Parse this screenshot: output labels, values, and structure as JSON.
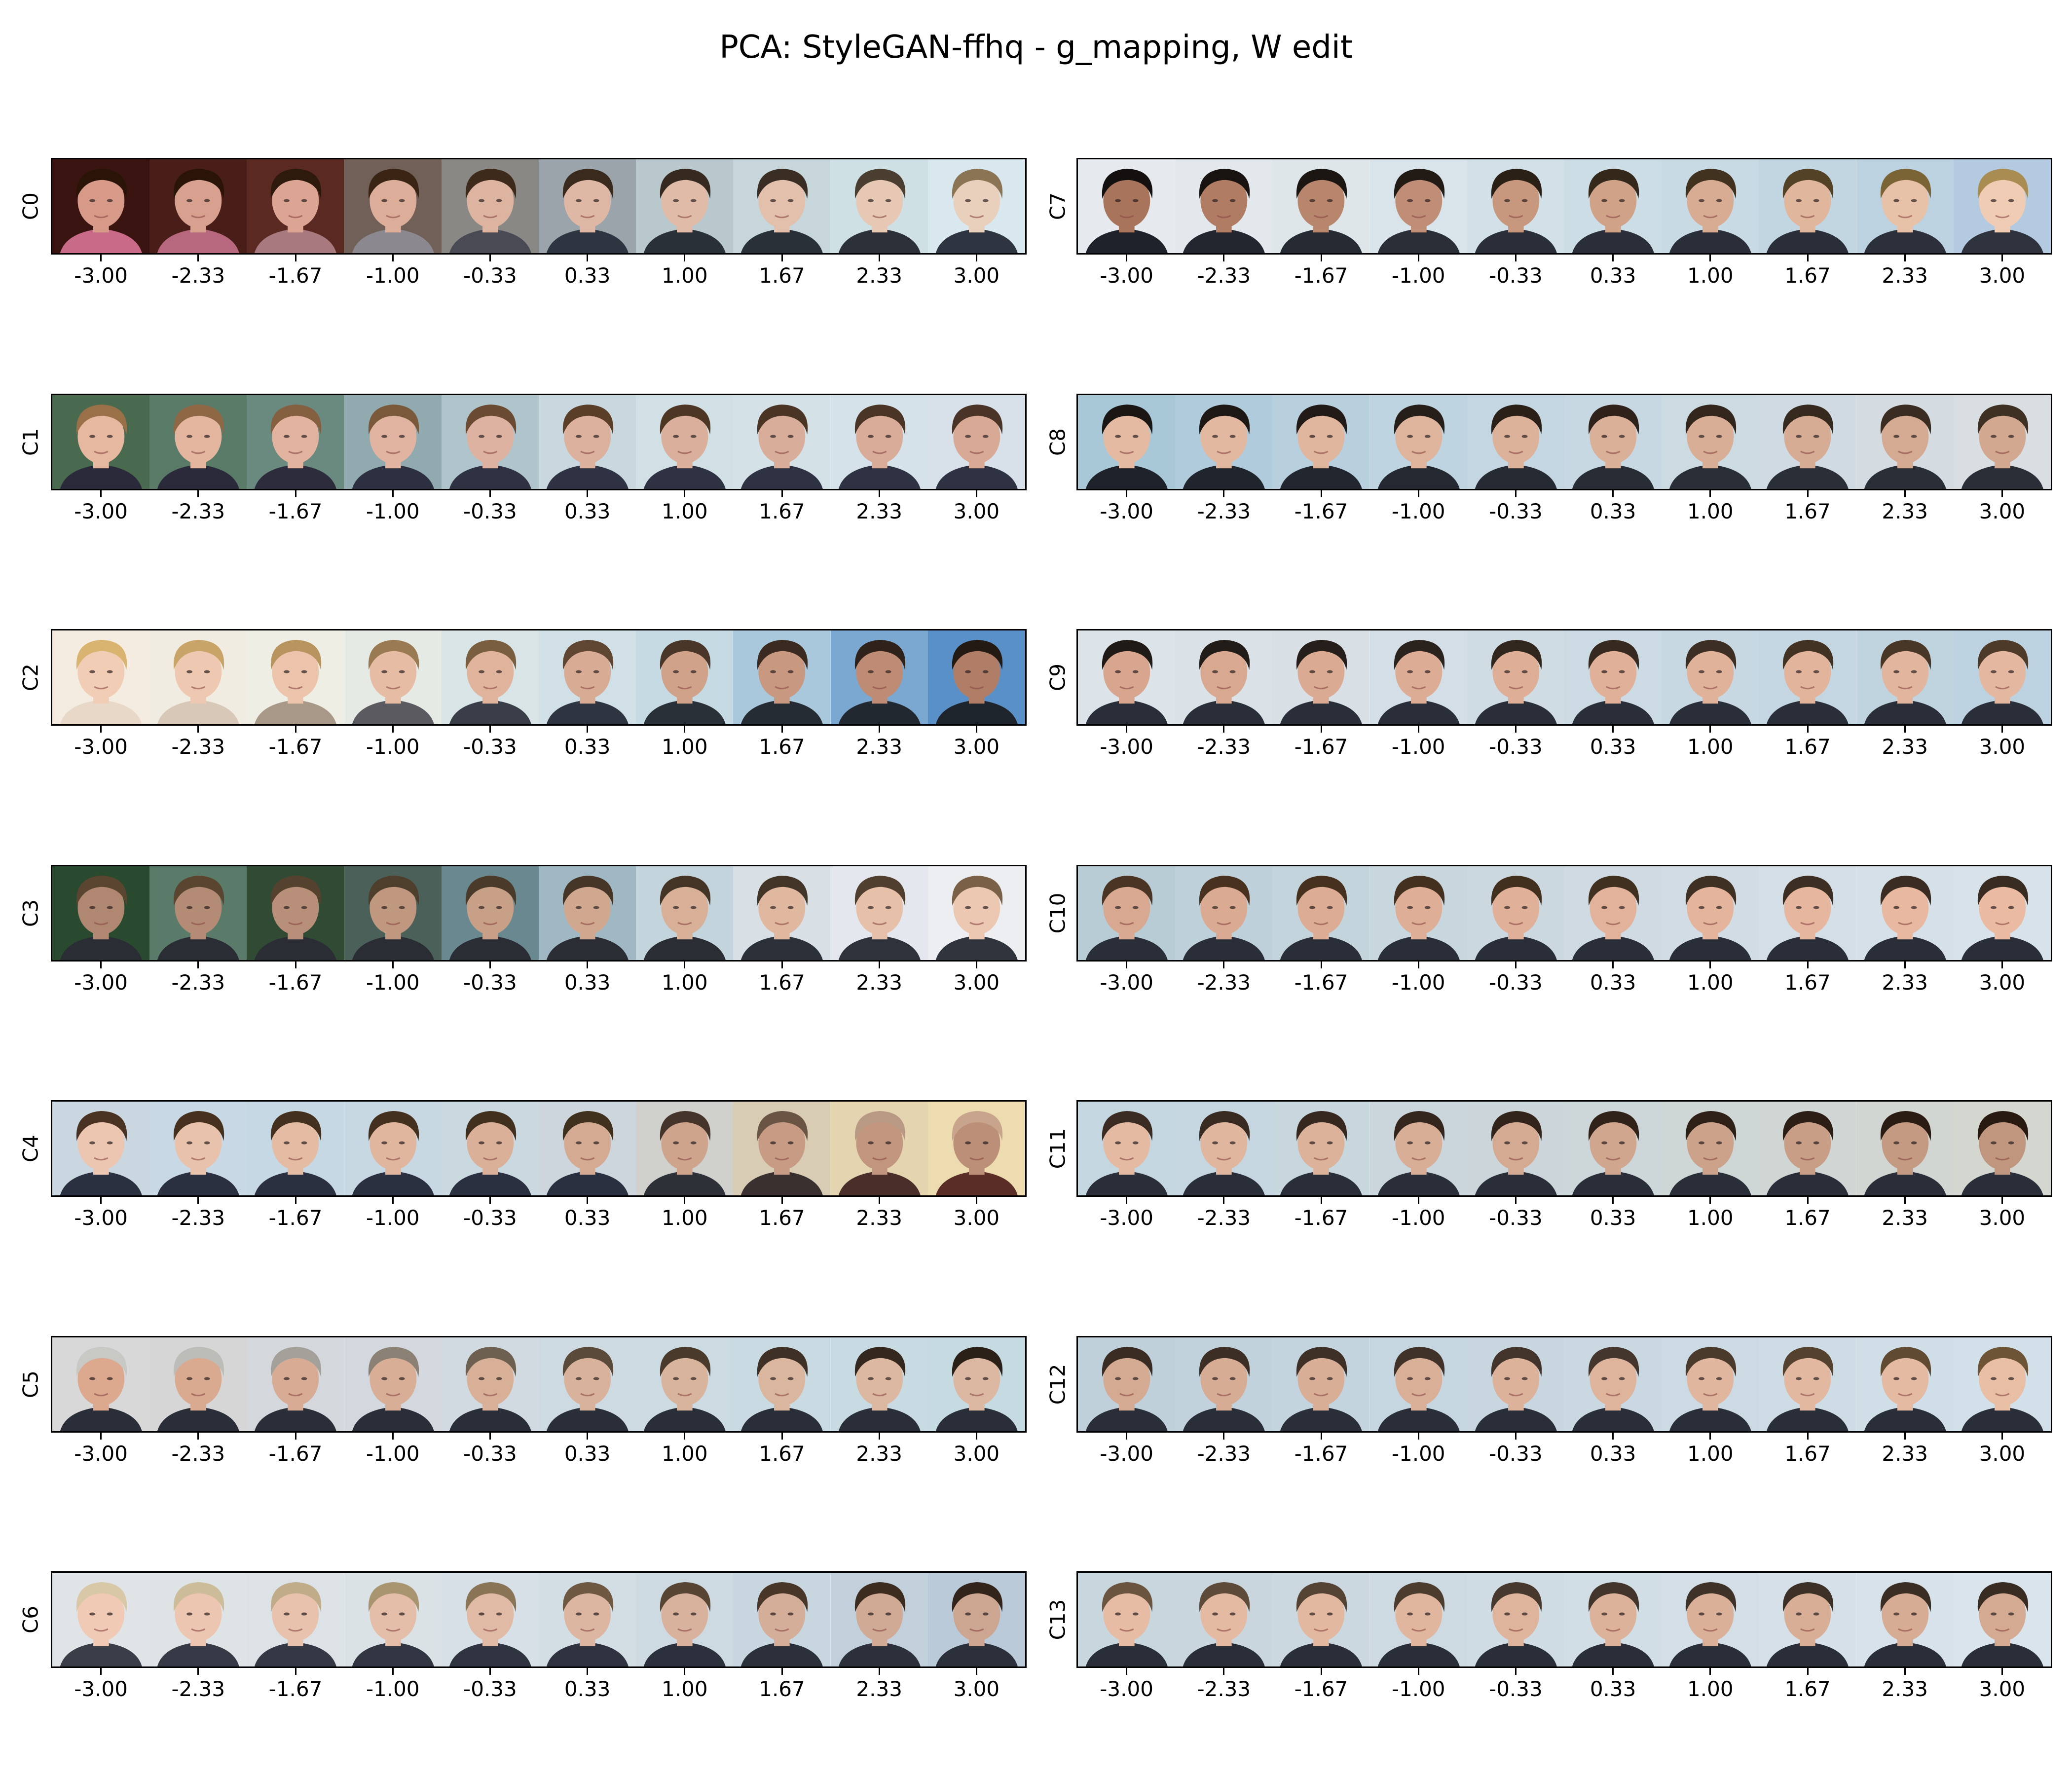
{
  "title": "PCA: StyleGAN-ffhq - g_mapping, W edit",
  "ticks": [
    "-3.00",
    "-2.33",
    "-1.67",
    "-1.00",
    "-0.33",
    "0.33",
    "1.00",
    "1.67",
    "2.33",
    "3.00"
  ],
  "tick_values": [
    -3.0,
    -2.33,
    -1.67,
    -1.0,
    -0.33,
    0.33,
    1.0,
    1.67,
    2.33,
    3.0
  ],
  "components": [
    {
      "label": "C0",
      "bg": [
        "#3a1410",
        "#4a1e18",
        "#5a2a22",
        "#706058",
        "#8a8884",
        "#9aa4aa",
        "#b8c8cc",
        "#c6d6da",
        "#cfe0e4",
        "#d8e8ee"
      ],
      "hair": [
        "#2a1408",
        "#2a1408",
        "#2e1a0c",
        "#3a2414",
        "#3e2a1a",
        "#3a2a1e",
        "#362a20",
        "#3a2e24",
        "#4a3e30",
        "#8a7454"
      ],
      "skin": [
        "#d89a88",
        "#d8a08e",
        "#dca492",
        "#dcae9a",
        "#dcb4a0",
        "#deb8a4",
        "#e0bca8",
        "#e2c0ac",
        "#e6c8b4",
        "#e8d0bc"
      ],
      "cloth": [
        "#c86a88",
        "#b8687e",
        "#a87a80",
        "#8c8890",
        "#4a4a55",
        "#2e3440",
        "#2a3038",
        "#2a3038",
        "#2c3038",
        "#2e3440"
      ]
    },
    {
      "label": "C1",
      "bg": [
        "#4a6a50",
        "#5a7a68",
        "#6a8a80",
        "#90aab0",
        "#b0c4cc",
        "#c8d8de",
        "#d0e0e4",
        "#d4e2e8",
        "#d6e2ea",
        "#d8e0ea"
      ],
      "hair": [
        "#9a7048",
        "#8e6844",
        "#846040",
        "#7a583a",
        "#6a4a30",
        "#5a3e28",
        "#4e3624",
        "#4a3424",
        "#4a3426",
        "#4a3428"
      ],
      "skin": [
        "#e6b8a0",
        "#e4b6a0",
        "#e2b4a0",
        "#e0b4a0",
        "#deb2a0",
        "#dcb29e",
        "#dab09c",
        "#d8ae9a",
        "#d8ac98",
        "#d8aa96"
      ],
      "cloth": [
        "#2a2a3a",
        "#2a2a3a",
        "#2c2c3c",
        "#2c3040",
        "#2e3242",
        "#2e3242",
        "#2e3242",
        "#2e3242",
        "#2e3242",
        "#2e3242"
      ]
    },
    {
      "label": "C2",
      "bg": [
        "#f4ece0",
        "#f0ece2",
        "#eeeee4",
        "#e6eae4",
        "#d8e4e6",
        "#d0e0e6",
        "#c6dae4",
        "#aac8dc",
        "#7aa8d0",
        "#5a90c8"
      ],
      "hair": [
        "#d8b470",
        "#c8a468",
        "#b8945e",
        "#9a7a52",
        "#7a5e40",
        "#5e4632",
        "#4a3628",
        "#3a2a20",
        "#2e221a",
        "#241a14"
      ],
      "skin": [
        "#f2cdb6",
        "#eec8b0",
        "#ecc4ac",
        "#e6bca4",
        "#e0b49c",
        "#d8ac94",
        "#d0a28a",
        "#c89880",
        "#be8c74",
        "#b07e66"
      ],
      "cloth": [
        "#e8d8c8",
        "#d8c8b8",
        "#a89888",
        "#5a5a60",
        "#3a3e48",
        "#2e3440",
        "#2a3038",
        "#262c34",
        "#222830",
        "#1e242c"
      ]
    },
    {
      "label": "C3",
      "bg": [
        "#2a4a30",
        "#5a7a6a",
        "#304a34",
        "#4a6058",
        "#6a8890",
        "#a0b8c4",
        "#c4d4dc",
        "#d8e0e6",
        "#e4e8ee",
        "#eceef2"
      ],
      "hair": [
        "#5a4630",
        "#5a4630",
        "#54422e",
        "#4e3e2c",
        "#4a3a2a",
        "#463628",
        "#443426",
        "#423426",
        "#503e2e",
        "#7a6046"
      ],
      "skin": [
        "#b08872",
        "#b48c76",
        "#b8907a",
        "#c09880",
        "#c8a088",
        "#d0a890",
        "#d8b098",
        "#e0b8a0",
        "#e6c0a8",
        "#ecc8b2"
      ],
      "cloth": [
        "#2a2e34",
        "#2a2e34",
        "#2a2e34",
        "#2a2e34",
        "#2a2e34",
        "#2a2e34",
        "#2a2e34",
        "#2c3038",
        "#2e323a",
        "#30343c"
      ]
    },
    {
      "label": "C4",
      "bg": [
        "#cad6e0",
        "#c8d8e4",
        "#c6d8e4",
        "#c8d8e2",
        "#cad8e0",
        "#ccd6dc",
        "#d0d0cc",
        "#d8ccb4",
        "#e4d4b0",
        "#ecdcb0"
      ],
      "hair": [
        "#4a3222",
        "#46301e",
        "#44301e",
        "#44301e",
        "#42301e",
        "#40301e",
        "#44342a",
        "#6a5444",
        "#b89a84",
        "#c8a48c"
      ],
      "skin": [
        "#ecc6b0",
        "#e8c2aa",
        "#e4bca4",
        "#e0b69e",
        "#dab098",
        "#d4aa92",
        "#ceA48c",
        "#c89c84",
        "#c2967e",
        "#bc9078"
      ],
      "cloth": [
        "#2a3040",
        "#2a3040",
        "#2a3040",
        "#2a3040",
        "#2a3040",
        "#2a3040",
        "#2e3038",
        "#3a3030",
        "#4a2e2a",
        "#5a2e26"
      ]
    },
    {
      "label": "C5",
      "bg": [
        "#d8d8d8",
        "#d6d6d6",
        "#d4d8dc",
        "#d2d8de",
        "#d0dae0",
        "#cedae2",
        "#ccdae2",
        "#cadae2",
        "#c8dae2",
        "#c6dae2"
      ],
      "hair": [
        "#c8c8c4",
        "#bcbcb8",
        "#a4a09a",
        "#8a8074",
        "#6e6050",
        "#5a4a3a",
        "#4a3a2c",
        "#3e3024",
        "#34281e",
        "#2a2018"
      ],
      "skin": [
        "#dca88e",
        "#daaa90",
        "#d8ac94",
        "#d8ae96",
        "#d8b098",
        "#d8b29a",
        "#d8b49c",
        "#dab69e",
        "#dcb8a0",
        "#dcb8a2"
      ],
      "cloth": [
        "#2a2e38",
        "#2a2e38",
        "#2a2e38",
        "#2a2e38",
        "#2a2e38",
        "#2a2e38",
        "#2a2e38",
        "#2a2e38",
        "#2a2e38",
        "#2a2e38"
      ]
    },
    {
      "label": "C6",
      "bg": [
        "#e0e4e6",
        "#dee4e6",
        "#dce2e6",
        "#dae2e6",
        "#d6e0e6",
        "#d2dee4",
        "#cedae2",
        "#c8d6e0",
        "#c2d0dc",
        "#bacad8"
      ],
      "hair": [
        "#d8c8a8",
        "#ccbc9a",
        "#c0ac88",
        "#a8946e",
        "#8a7456",
        "#6e5842",
        "#584432",
        "#483628",
        "#3c2c20",
        "#32241a"
      ],
      "skin": [
        "#f0cab4",
        "#ecc6b0",
        "#e8c2ac",
        "#e4bea8",
        "#e0baa4",
        "#dcb6a0",
        "#d8b29c",
        "#d4ae98",
        "#d0aa94",
        "#cca690"
      ],
      "cloth": [
        "#3a3e48",
        "#363a46",
        "#343844",
        "#323642",
        "#303440",
        "#2e323e",
        "#2c303c",
        "#2c303a",
        "#2c303a",
        "#2c303a"
      ]
    }
  ],
  "components_right": [
    {
      "label": "C7",
      "bg": [
        "#e6eaee",
        "#e2e8ec",
        "#dee6ea",
        "#d8e4ea",
        "#d2e0e8",
        "#cddde6",
        "#c8dae4",
        "#c2d6e2",
        "#bcd2e0",
        "#b4cae0"
      ],
      "hair": [
        "#141010",
        "#181210",
        "#1c1612",
        "#221a14",
        "#2a2016",
        "#34281a",
        "#40321e",
        "#544226",
        "#7a6436",
        "#a88c52"
      ],
      "skin": [
        "#a8745c",
        "#b07c64",
        "#b8866c",
        "#c08e76",
        "#c8987e",
        "#d0a288",
        "#d8ac92",
        "#e0b69c",
        "#e8c2a8",
        "#f0ccb4"
      ],
      "cloth": [
        "#1e222a",
        "#22262e",
        "#262a32",
        "#2a2e36",
        "#2a2e38",
        "#2a2e38",
        "#2a2e38",
        "#2a2e38",
        "#2c303a",
        "#2e323c"
      ]
    },
    {
      "label": "C8",
      "bg": [
        "#a8c8d8",
        "#b0ccdc",
        "#b8d0de",
        "#bed4e0",
        "#c4d6e2",
        "#c8d8e2",
        "#ccdae2",
        "#d0dae2",
        "#d4dce2",
        "#d8dee2"
      ],
      "hair": [
        "#1a1614",
        "#1e1814",
        "#221a16",
        "#261e18",
        "#2a2018",
        "#2e221a",
        "#32261c",
        "#362a1e",
        "#3a2c20",
        "#3e3022"
      ],
      "skin": [
        "#e4baa2",
        "#e2b8a0",
        "#e0b69e",
        "#deb49c",
        "#dcb29a",
        "#dab098",
        "#d8ae96",
        "#d6ac94",
        "#d4aa92",
        "#d2a890"
      ],
      "cloth": [
        "#1e222a",
        "#20242c",
        "#22262e",
        "#242830",
        "#262a32",
        "#282c34",
        "#2a2e36",
        "#2a2e36",
        "#2a2e36",
        "#2a2e36"
      ]
    },
    {
      "label": "C9",
      "bg": [
        "#dce4ea",
        "#dae2e8",
        "#d8e0e6",
        "#d4dee6",
        "#d0dce4",
        "#ccdae4",
        "#c8d8e2",
        "#c4d6e2",
        "#c0d4e0",
        "#bcd2e0"
      ],
      "hair": [
        "#201a16",
        "#221c18",
        "#261e1a",
        "#2a221c",
        "#30261e",
        "#362a20",
        "#3c2e22",
        "#423224",
        "#483626",
        "#4e3a28"
      ],
      "skin": [
        "#d8a68e",
        "#d8a890",
        "#daaa92",
        "#dcac94",
        "#deae96",
        "#e0b098",
        "#e0b29a",
        "#e2b49c",
        "#e2b69e",
        "#e4b8a0"
      ],
      "cloth": [
        "#2a2e38",
        "#2a2e38",
        "#2a2e38",
        "#2a2e38",
        "#2a2e38",
        "#2a2e38",
        "#2a2e38",
        "#2a2e38",
        "#2a2e38",
        "#2a2e38"
      ]
    },
    {
      "label": "C10",
      "bg": [
        "#b8ccd6",
        "#bed0da",
        "#c4d4dc",
        "#c8d6de",
        "#ccd8e0",
        "#d0dae2",
        "#d2dce4",
        "#d4dee6",
        "#d6e0e8",
        "#d8e2ea"
      ],
      "hair": [
        "#4a3424",
        "#48321f",
        "#46311f",
        "#44301f",
        "#42301f",
        "#403020",
        "#3e3022",
        "#3c2e22",
        "#3a2c22",
        "#382c22"
      ],
      "skin": [
        "#d8a890",
        "#daaa92",
        "#dcac94",
        "#deae96",
        "#e0b098",
        "#e2b29a",
        "#e4b49c",
        "#e6b69e",
        "#e8b8a0",
        "#eabaa2"
      ],
      "cloth": [
        "#2a2e38",
        "#2a2e38",
        "#2a2e38",
        "#2a2e38",
        "#2a2e38",
        "#2a2e38",
        "#2a2e38",
        "#2a2e38",
        "#2a2e38",
        "#2a2e38"
      ]
    },
    {
      "label": "C11",
      "bg": [
        "#c4d6e0",
        "#c6d6e0",
        "#c8d6de",
        "#cad6dc",
        "#ccd6da",
        "#cdd6d8",
        "#ced6d6",
        "#d0d6d4",
        "#d2d6d2",
        "#d4d6d0"
      ],
      "hair": [
        "#3a2c22",
        "#382a20",
        "#36281e",
        "#34261c",
        "#32241a",
        "#302218",
        "#2e2016",
        "#2c1e14",
        "#2a1c12",
        "#281a10"
      ],
      "skin": [
        "#e4baa2",
        "#e0b69e",
        "#dcb29a",
        "#d8ae96",
        "#d4aa92",
        "#d0a68e",
        "#cca28a",
        "#c89e86",
        "#c49a82",
        "#c0967e"
      ],
      "cloth": [
        "#2a2e38",
        "#2a2e38",
        "#2a2e38",
        "#2a2e38",
        "#2a2e38",
        "#2a2e38",
        "#2a2e38",
        "#2a2e38",
        "#2a2e38",
        "#2a2e38"
      ]
    },
    {
      "label": "C12",
      "bg": [
        "#c0d0da",
        "#c2d2dc",
        "#c4d4de",
        "#c6d6e0",
        "#c8d6e0",
        "#cad8e2",
        "#ccdae4",
        "#cedce6",
        "#d0dee8",
        "#d2e0ea"
      ],
      "hair": [
        "#3a2c22",
        "#3c2e24",
        "#3e3026",
        "#403228",
        "#42342a",
        "#44362c",
        "#4a3a2c",
        "#54422e",
        "#604a32",
        "#6e5436"
      ],
      "skin": [
        "#d4aa92",
        "#d6ac94",
        "#d8ae96",
        "#daaf98",
        "#dcb29a",
        "#deb49c",
        "#e0b69e",
        "#e2b8a0",
        "#e4baa2",
        "#e8bea4"
      ],
      "cloth": [
        "#2a2e38",
        "#2a2e38",
        "#2a2e38",
        "#2a2e38",
        "#2a2e38",
        "#2a2e38",
        "#2a2e38",
        "#2a2e38",
        "#2a2e38",
        "#2a2e38"
      ]
    },
    {
      "label": "C13",
      "bg": [
        "#c8d6de",
        "#cad6de",
        "#ccd8e0",
        "#cedae2",
        "#d0dce4",
        "#d2dee6",
        "#d4dee6",
        "#d6e0e8",
        "#d8e2ea",
        "#dae4ec"
      ],
      "hair": [
        "#6a5440",
        "#5e4a38",
        "#544232",
        "#4c3c2e",
        "#46382c",
        "#42342a",
        "#3e3228",
        "#3c3026",
        "#3a2e24",
        "#382c22"
      ],
      "skin": [
        "#e6bca4",
        "#e4baa2",
        "#e2b8a0",
        "#e0b69e",
        "#deb49c",
        "#dcb29a",
        "#dab098",
        "#d8ae96",
        "#d6ac94",
        "#d4aa92"
      ],
      "cloth": [
        "#2a2e38",
        "#2a2e38",
        "#2a2e38",
        "#2a2e38",
        "#2a2e38",
        "#2a2e38",
        "#2a2e38",
        "#2a2e38",
        "#2a2e38",
        "#2a2e38"
      ]
    }
  ]
}
